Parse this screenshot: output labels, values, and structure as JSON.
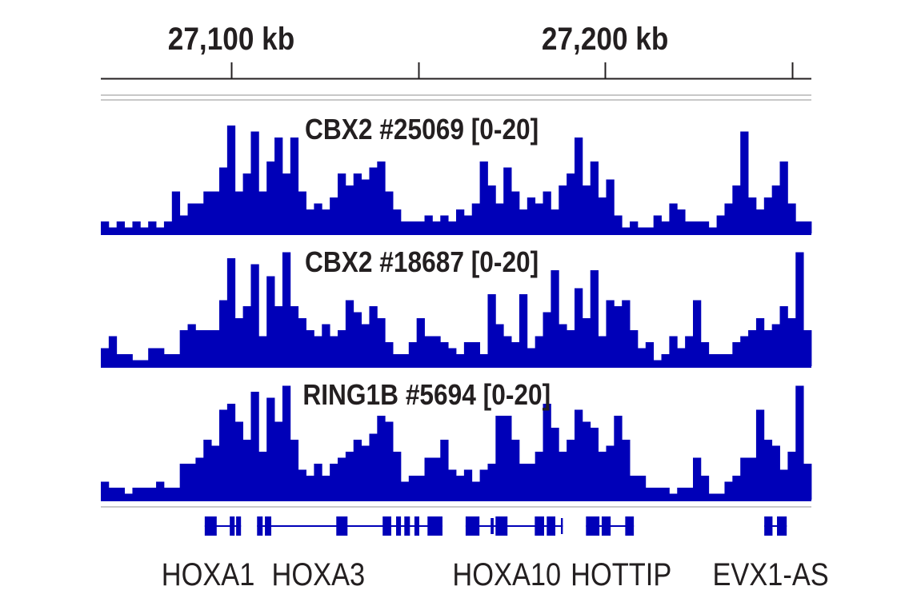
{
  "chart_data": {
    "type": "area",
    "x_range_kb": [
      27065.1,
      27255.2
    ],
    "axis": {
      "tick_labels": [
        {
          "kb": 27100,
          "label": "27,100 kb"
        },
        {
          "kb": 27200,
          "label": "27,200 kb"
        }
      ],
      "ticks_kb": [
        27100,
        27150,
        27200,
        27250
      ]
    },
    "color": "#0000b8",
    "tracks": [
      {
        "name": "CBX2 #25069 [0-20]",
        "ylim": [
          0,
          20
        ],
        "values": [
          2,
          1,
          2,
          1,
          2,
          1,
          2,
          1,
          2,
          7,
          3,
          5,
          5,
          7,
          7,
          11,
          18,
          7,
          10,
          17,
          7,
          12,
          16,
          10,
          16,
          7,
          4,
          5,
          4,
          6,
          10,
          8,
          10,
          9,
          11,
          12,
          7,
          4,
          2,
          2,
          2,
          3,
          2,
          3,
          2,
          4,
          3,
          5,
          12,
          8,
          5,
          11,
          7,
          4,
          6,
          5,
          7,
          4,
          8,
          10,
          16,
          8,
          12,
          6,
          9,
          3,
          1,
          2,
          1,
          1,
          3,
          2,
          5,
          4,
          2,
          2,
          2,
          1,
          3,
          5,
          8,
          17,
          6,
          4,
          6,
          8,
          12,
          5,
          2,
          2
        ]
      },
      {
        "name": "CBX2 #18687 [0-20]",
        "ylim": [
          0,
          20
        ],
        "values": [
          3,
          5,
          2,
          2,
          1,
          1,
          3,
          3,
          2,
          2,
          6,
          7,
          6,
          6,
          6,
          11,
          18,
          8,
          10,
          17,
          5,
          15,
          10,
          19,
          10,
          8,
          6,
          5,
          7,
          5,
          6,
          11,
          9,
          7,
          10,
          8,
          4,
          2,
          2,
          4,
          8,
          5,
          5,
          4,
          3,
          2,
          4,
          4,
          2,
          12,
          7,
          5,
          4,
          12,
          3,
          5,
          9,
          16,
          7,
          6,
          13,
          8,
          16,
          5,
          11,
          10,
          11,
          6,
          3,
          4,
          1,
          2,
          5,
          3,
          5,
          11,
          4,
          2,
          2,
          2,
          4,
          5,
          6,
          8,
          6,
          7,
          10,
          8,
          19,
          6
        ]
      },
      {
        "name": "RING1B #5694 [0-20]",
        "ylim": [
          0,
          20
        ],
        "values": [
          3,
          2,
          2,
          1,
          2,
          2,
          2,
          3,
          2,
          2,
          6,
          6,
          7,
          10,
          9,
          15,
          16,
          13,
          10,
          18,
          8,
          17,
          13,
          19,
          10,
          5,
          4,
          6,
          4,
          6,
          7,
          8,
          10,
          9,
          11,
          14,
          13,
          8,
          3,
          4,
          4,
          7,
          7,
          10,
          5,
          4,
          5,
          3,
          5,
          6,
          14,
          14,
          10,
          6,
          6,
          8,
          16,
          12,
          8,
          10,
          15,
          13,
          12,
          8,
          9,
          14,
          10,
          4,
          4,
          2,
          2,
          2,
          1,
          2,
          2,
          7,
          4,
          1,
          1,
          3,
          4,
          7,
          7,
          15,
          10,
          9,
          5,
          8,
          19,
          6
        ]
      }
    ],
    "genes": {
      "labels": [
        {
          "name": "HOXA1",
          "kb": 27093.8
        },
        {
          "name": "HOXA3",
          "kb": 27123.3
        },
        {
          "name": "HOXA10",
          "kb": 27173.7
        },
        {
          "name": "HOTTIP",
          "kb": 27204.3
        },
        {
          "name": "EVX1-AS",
          "kb": 27244.3
        }
      ],
      "transcripts": [
        {
          "start": 27092.9,
          "end": 27102.6,
          "exons": [
            [
              27092.9,
              27096.1
            ],
            [
              27099.6,
              27100.9
            ],
            [
              27101.3,
              27102.6
            ]
          ]
        },
        {
          "start": 27106.9,
          "end": 27156.5,
          "exons": [
            [
              27106.9,
              27108.4
            ],
            [
              27109.0,
              27110.7
            ],
            [
              27128.1,
              27131.1
            ],
            [
              27140.5,
              27142.8
            ],
            [
              27144.1,
              27145.4
            ],
            [
              27146.3,
              27147.8
            ],
            [
              27149.0,
              27150.3
            ],
            [
              27152.5,
              27156.5
            ]
          ]
        },
        {
          "start": 27162.7,
          "end": 27188.7,
          "exons": [
            [
              27162.7,
              27166.4
            ],
            [
              27169.4,
              27170.2
            ],
            [
              27170.7,
              27173.9
            ],
            [
              27181.2,
              27183.7
            ],
            [
              27184.4,
              27186.7
            ],
            [
              27188.2,
              27188.7
            ]
          ]
        },
        {
          "start": 27194.9,
          "end": 27207.7,
          "exons": [
            [
              27194.9,
              27198.5
            ],
            [
              27199.1,
              27201.5
            ],
            [
              27205.4,
              27207.7
            ]
          ]
        },
        {
          "start": 27242.6,
          "end": 27248.6,
          "exons": [
            [
              27242.6,
              27244.8
            ],
            [
              27246.0,
              27248.6
            ]
          ]
        }
      ]
    }
  }
}
